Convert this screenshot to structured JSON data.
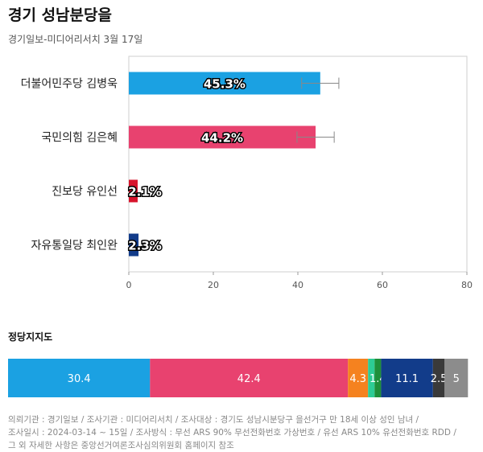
{
  "header": {
    "title": "경기 성남분당을",
    "subtitle": "경기일보-미디어리서치 3월 17일"
  },
  "chart_data": [
    {
      "type": "bar",
      "orientation": "horizontal",
      "categories": [
        "더불어민주당 김병욱",
        "국민의힘 김은혜",
        "진보당 유인선",
        "자유통일당 최인완"
      ],
      "values": [
        45.3,
        44.2,
        2.1,
        2.3
      ],
      "value_labels": [
        "45.3%",
        "44.2%",
        "2.1%",
        "2.3%"
      ],
      "colors": [
        "#1ba1e2",
        "#e8426f",
        "#d7142c",
        "#123c8a"
      ],
      "error_margin": 4.4,
      "error_bars_on": [
        true,
        true,
        false,
        false
      ],
      "xlim": [
        0,
        80
      ],
      "xticks": [
        0,
        20,
        40,
        60,
        80
      ],
      "xtick_labels": [
        "0",
        "20",
        "40",
        "60",
        "80"
      ],
      "grid": false
    },
    {
      "type": "bar",
      "orientation": "stacked-horizontal",
      "title": "정당지지도",
      "values": [
        30.4,
        42.4,
        4.3,
        1.4,
        1.4,
        11.1,
        2.5,
        5
      ],
      "value_labels": [
        "30.4",
        "42.4",
        "4.3",
        "",
        "1.4",
        "11.1",
        "2.5",
        "5"
      ],
      "colors": [
        "#1ba1e2",
        "#e8426f",
        "#f5821f",
        "#2dcc95",
        "#1e8f3a",
        "#123c8a",
        "#3a3a3a",
        "#8c8c8c"
      ],
      "xlim": [
        0,
        100
      ]
    }
  ],
  "footer": {
    "line1": "의뢰기관 : 경기일보 / 조사기관 : 미디어리서치 / 조사대상 : 경기도 성남시분당구 을선거구 만 18세 이상 성인 남녀 /",
    "line2": "조사일시 : 2024-03-14 ~ 15일 / 조사방식 : 무선 ARS 90% 무선전화번호 가상번호 / 유선 ARS 10% 유선전화번호 RDD /",
    "line3": "그 외 자세한 사항은 중앙선거여론조사심의위원회 홈페이지 참조"
  }
}
